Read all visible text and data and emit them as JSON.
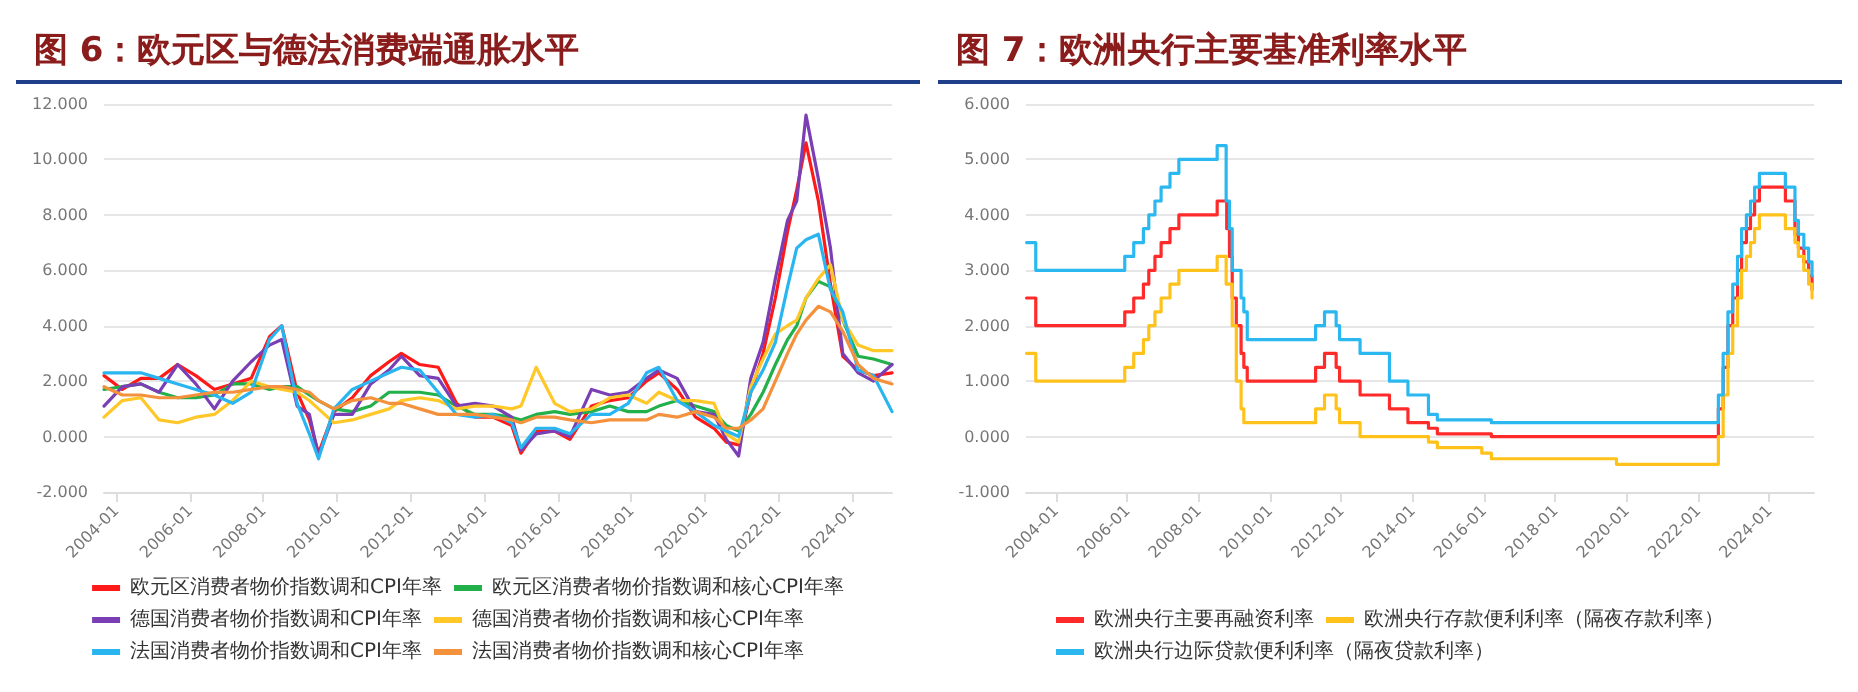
{
  "chart_data": [
    {
      "type": "line",
      "title": "图 6：欧元区与德法消费端通胀水平",
      "x": [
        "2003-09",
        "2004-03",
        "2004-09",
        "2005-03",
        "2005-09",
        "2006-03",
        "2006-09",
        "2007-03",
        "2007-09",
        "2008-03",
        "2008-07",
        "2008-12",
        "2009-04",
        "2009-07",
        "2009-12",
        "2010-06",
        "2010-12",
        "2011-06",
        "2011-10",
        "2012-04",
        "2012-10",
        "2013-04",
        "2013-10",
        "2014-04",
        "2014-10",
        "2015-01",
        "2015-06",
        "2015-12",
        "2016-05",
        "2016-12",
        "2017-06",
        "2017-12",
        "2018-06",
        "2018-10",
        "2019-04",
        "2019-10",
        "2020-04",
        "2020-08",
        "2020-12",
        "2021-04",
        "2021-08",
        "2021-12",
        "2022-04",
        "2022-07",
        "2022-10",
        "2023-02",
        "2023-06",
        "2023-10",
        "2024-03",
        "2024-08",
        "2025-02"
      ],
      "series": [
        {
          "name": "欧元区消费者物价指数调和CPI年率",
          "color": "#ff1a1a",
          "values": [
            2.2,
            1.7,
            2.1,
            2.1,
            2.6,
            2.2,
            1.7,
            1.9,
            2.1,
            3.6,
            4.0,
            1.6,
            0.6,
            -0.6,
            0.9,
            1.4,
            2.2,
            2.7,
            3.0,
            2.6,
            2.5,
            1.2,
            0.7,
            0.7,
            0.4,
            -0.6,
            0.2,
            0.2,
            -0.1,
            1.1,
            1.3,
            1.4,
            2.0,
            2.3,
            1.7,
            0.7,
            0.3,
            -0.2,
            -0.3,
            1.6,
            3.0,
            5.0,
            7.4,
            8.9,
            10.6,
            8.5,
            5.5,
            2.9,
            2.4,
            2.2,
            2.3
          ]
        },
        {
          "name": "欧元区消费者物价指数调和核心CPI年率",
          "color": "#22b04b",
          "values": [
            1.7,
            1.8,
            1.9,
            1.6,
            1.4,
            1.4,
            1.5,
            1.9,
            1.9,
            1.7,
            1.8,
            1.8,
            1.5,
            1.3,
            1.0,
            0.9,
            1.1,
            1.6,
            1.6,
            1.6,
            1.5,
            1.1,
            0.8,
            0.8,
            0.7,
            0.6,
            0.8,
            0.9,
            0.8,
            0.9,
            1.1,
            0.9,
            0.9,
            1.1,
            1.3,
            1.1,
            0.9,
            0.4,
            0.2,
            0.8,
            1.6,
            2.6,
            3.5,
            4.0,
            5.0,
            5.6,
            5.4,
            4.2,
            2.9,
            2.8,
            2.6
          ]
        },
        {
          "name": "德国消费者物价指数调和CPI年率",
          "color": "#7b3fb5",
          "values": [
            1.1,
            1.8,
            1.9,
            1.6,
            2.6,
            1.9,
            1.0,
            2.0,
            2.7,
            3.3,
            3.5,
            1.1,
            0.8,
            -0.7,
            0.8,
            0.8,
            1.9,
            2.4,
            2.9,
            2.2,
            2.1,
            1.1,
            1.2,
            1.1,
            0.7,
            -0.5,
            0.1,
            0.2,
            0.0,
            1.7,
            1.5,
            1.6,
            2.1,
            2.4,
            2.1,
            0.9,
            0.8,
            -0.1,
            -0.7,
            2.1,
            3.4,
            5.7,
            7.8,
            8.5,
            11.6,
            9.3,
            6.8,
            3.0,
            2.3,
            2.0,
            2.6
          ]
        },
        {
          "name": "德国消费者物价指数调和核心CPI年率",
          "color": "#ffc727",
          "values": [
            0.7,
            1.3,
            1.4,
            0.6,
            0.5,
            0.7,
            0.8,
            1.3,
            2.0,
            1.8,
            1.7,
            1.6,
            1.3,
            1.0,
            0.5,
            0.6,
            0.8,
            1.0,
            1.3,
            1.4,
            1.3,
            1.0,
            1.1,
            1.1,
            1.0,
            1.1,
            2.5,
            1.2,
            0.9,
            1.0,
            1.4,
            1.5,
            1.2,
            1.6,
            1.3,
            1.3,
            1.2,
            0.1,
            -0.2,
            1.8,
            2.8,
            3.7,
            4.0,
            4.2,
            5.0,
            5.7,
            6.2,
            4.2,
            3.3,
            3.1,
            3.1
          ]
        },
        {
          "name": "法国消费者物价指数调和CPI年率",
          "color": "#29b6f0",
          "values": [
            2.3,
            2.3,
            2.3,
            2.1,
            1.9,
            1.7,
            1.5,
            1.2,
            1.6,
            3.5,
            4.0,
            1.2,
            0.1,
            -0.8,
            1.0,
            1.7,
            2.0,
            2.3,
            2.5,
            2.4,
            1.6,
            0.8,
            0.7,
            0.8,
            0.5,
            -0.4,
            0.3,
            0.3,
            0.1,
            0.8,
            0.8,
            1.2,
            2.3,
            2.5,
            1.3,
            0.9,
            0.4,
            0.2,
            0.0,
            1.6,
            2.4,
            3.4,
            5.4,
            6.8,
            7.1,
            7.3,
            5.3,
            4.5,
            2.4,
            2.2,
            0.9
          ]
        },
        {
          "name": "法国消费者物价指数调和核心CPI年率",
          "color": "#f4913c",
          "values": [
            1.8,
            1.5,
            1.5,
            1.4,
            1.4,
            1.5,
            1.6,
            1.6,
            1.7,
            1.8,
            1.8,
            1.7,
            1.6,
            1.3,
            1.0,
            1.3,
            1.4,
            1.2,
            1.2,
            1.0,
            0.8,
            0.8,
            0.8,
            0.7,
            0.6,
            0.5,
            0.7,
            0.7,
            0.6,
            0.5,
            0.6,
            0.6,
            0.6,
            0.8,
            0.7,
            0.9,
            0.7,
            0.3,
            0.3,
            0.6,
            1.0,
            2.0,
            3.0,
            3.7,
            4.2,
            4.7,
            4.5,
            3.8,
            2.6,
            2.1,
            1.9
          ]
        }
      ],
      "xlim": [
        "2003-09",
        "2025-02"
      ],
      "xticks": [
        "2004-01",
        "2006-01",
        "2008-01",
        "2010-01",
        "2012-01",
        "2014-01",
        "2016-01",
        "2018-01",
        "2020-01",
        "2022-01",
        "2024-01"
      ],
      "ylim": [
        -2,
        12
      ],
      "yticks": [
        {
          "value": -2,
          "label": "-2.000"
        },
        {
          "value": 0,
          "label": "0.000"
        },
        {
          "value": 2,
          "label": "2.000"
        },
        {
          "value": 4,
          "label": "4.000"
        },
        {
          "value": 6,
          "label": "6.000"
        },
        {
          "value": 8,
          "label": "8.000"
        },
        {
          "value": 10,
          "label": "10.000"
        },
        {
          "value": 12,
          "label": "12.000"
        }
      ],
      "grid": "y",
      "legend": "bottom"
    },
    {
      "type": "step",
      "title": "图 7：欧洲央行主要基准利率水平",
      "series": [
        {
          "name": "欧洲央行主要再融资利率",
          "color": "#ff2a2a",
          "x": [
            "2003-03-07",
            "2003-06-09",
            "2005-12-06",
            "2006-03-08",
            "2006-06-15",
            "2006-08-09",
            "2006-10-11",
            "2006-12-13",
            "2007-03-14",
            "2007-06-13",
            "2008-07-09",
            "2008-10-15",
            "2008-11-12",
            "2008-12-10",
            "2009-01-21",
            "2009-03-11",
            "2009-04-08",
            "2009-05-13",
            "2011-04-13",
            "2011-07-13",
            "2011-11-09",
            "2011-12-14",
            "2012-07-11",
            "2013-05-08",
            "2013-11-13",
            "2014-06-11",
            "2014-09-10",
            "2016-03-16",
            "2022-07-27",
            "2022-09-14",
            "2022-11-02",
            "2022-12-21",
            "2023-02-08",
            "2023-03-22",
            "2023-05-10",
            "2023-06-21",
            "2023-08-02",
            "2023-09-20",
            "2024-06-12",
            "2024-09-18",
            "2024-10-23",
            "2024-12-18",
            "2025-02-05",
            "2025-03-12"
          ],
          "values": [
            2.5,
            2.0,
            2.25,
            2.5,
            2.75,
            3.0,
            3.25,
            3.5,
            3.75,
            4.0,
            4.25,
            3.75,
            3.25,
            2.5,
            2.0,
            1.5,
            1.25,
            1.0,
            1.25,
            1.5,
            1.25,
            1.0,
            0.75,
            0.5,
            0.25,
            0.15,
            0.05,
            0.0,
            0.5,
            1.25,
            2.0,
            2.5,
            3.0,
            3.5,
            3.75,
            4.0,
            4.25,
            4.5,
            4.25,
            3.65,
            3.4,
            3.15,
            2.9,
            2.65
          ]
        },
        {
          "name": "欧洲央行存款便利利率（隔夜存款利率）",
          "color": "#ffc21a",
          "x": [
            "2003-03-07",
            "2003-06-09",
            "2005-12-06",
            "2006-03-08",
            "2006-06-15",
            "2006-08-09",
            "2006-10-11",
            "2006-12-13",
            "2007-03-14",
            "2007-06-13",
            "2008-07-09",
            "2008-10-09",
            "2008-12-10",
            "2009-01-21",
            "2009-03-11",
            "2009-04-08",
            "2011-04-13",
            "2011-07-13",
            "2011-11-09",
            "2011-12-14",
            "2012-07-11",
            "2014-06-11",
            "2014-09-10",
            "2015-12-09",
            "2016-03-16",
            "2019-09-18",
            "2022-07-27",
            "2022-09-14",
            "2022-11-02",
            "2022-12-21",
            "2023-02-08",
            "2023-03-22",
            "2023-05-10",
            "2023-06-21",
            "2023-08-02",
            "2023-09-20",
            "2024-06-12",
            "2024-09-18",
            "2024-10-23",
            "2024-12-18",
            "2025-02-05",
            "2025-03-12"
          ],
          "values": [
            1.5,
            1.0,
            1.25,
            1.5,
            1.75,
            2.0,
            2.25,
            2.5,
            2.75,
            3.0,
            3.25,
            2.75,
            2.0,
            1.0,
            0.5,
            0.25,
            0.5,
            0.75,
            0.5,
            0.25,
            0.0,
            -0.1,
            -0.2,
            -0.3,
            -0.4,
            -0.5,
            0.0,
            0.75,
            1.5,
            2.0,
            2.5,
            3.0,
            3.25,
            3.5,
            3.75,
            4.0,
            3.75,
            3.5,
            3.25,
            3.0,
            2.75,
            2.5
          ]
        },
        {
          "name": "欧洲央行边际贷款便利利率（隔夜贷款利率）",
          "color": "#2bb8f0",
          "x": [
            "2003-03-07",
            "2003-06-09",
            "2005-12-06",
            "2006-03-08",
            "2006-06-15",
            "2006-08-09",
            "2006-10-11",
            "2006-12-13",
            "2007-03-14",
            "2007-06-13",
            "2008-07-09",
            "2008-10-09",
            "2008-11-12",
            "2008-12-10",
            "2009-03-11",
            "2009-04-08",
            "2009-05-13",
            "2011-04-13",
            "2011-07-13",
            "2011-11-09",
            "2011-12-14",
            "2012-07-11",
            "2013-05-08",
            "2013-11-13",
            "2014-06-11",
            "2014-09-10",
            "2016-03-16",
            "2022-07-27",
            "2022-09-14",
            "2022-11-02",
            "2022-12-21",
            "2023-02-08",
            "2023-03-22",
            "2023-05-10",
            "2023-06-21",
            "2023-08-02",
            "2023-09-20",
            "2024-06-12",
            "2024-09-18",
            "2024-10-23",
            "2024-12-18",
            "2025-02-05",
            "2025-03-12"
          ],
          "values": [
            3.5,
            3.0,
            3.25,
            3.5,
            3.75,
            4.0,
            4.25,
            4.5,
            4.75,
            5.0,
            5.25,
            4.25,
            3.75,
            3.0,
            2.5,
            2.25,
            1.75,
            2.0,
            2.25,
            2.0,
            1.75,
            1.5,
            1.0,
            0.75,
            0.4,
            0.3,
            0.25,
            0.75,
            1.5,
            2.25,
            2.75,
            3.25,
            3.75,
            4.0,
            4.25,
            4.5,
            4.75,
            4.5,
            3.9,
            3.65,
            3.4,
            3.15,
            2.9
          ]
        }
      ],
      "xlim": [
        "2003-03",
        "2025-04"
      ],
      "xticks": [
        "2004-01",
        "2006-01",
        "2008-01",
        "2010-01",
        "2012-01",
        "2014-01",
        "2016-01",
        "2018-01",
        "2020-01",
        "2022-01",
        "2024-01"
      ],
      "ylim": [
        -1,
        6
      ],
      "yticks": [
        {
          "value": -1,
          "label": "-1.000"
        },
        {
          "value": 0,
          "label": "0.000"
        },
        {
          "value": 1,
          "label": "1.000"
        },
        {
          "value": 2,
          "label": "2.000"
        },
        {
          "value": 3,
          "label": "3.000"
        },
        {
          "value": 4,
          "label": "4.000"
        },
        {
          "value": 5,
          "label": "5.000"
        },
        {
          "value": 6,
          "label": "6.000"
        }
      ],
      "grid": "y",
      "legend": "bottom"
    }
  ]
}
